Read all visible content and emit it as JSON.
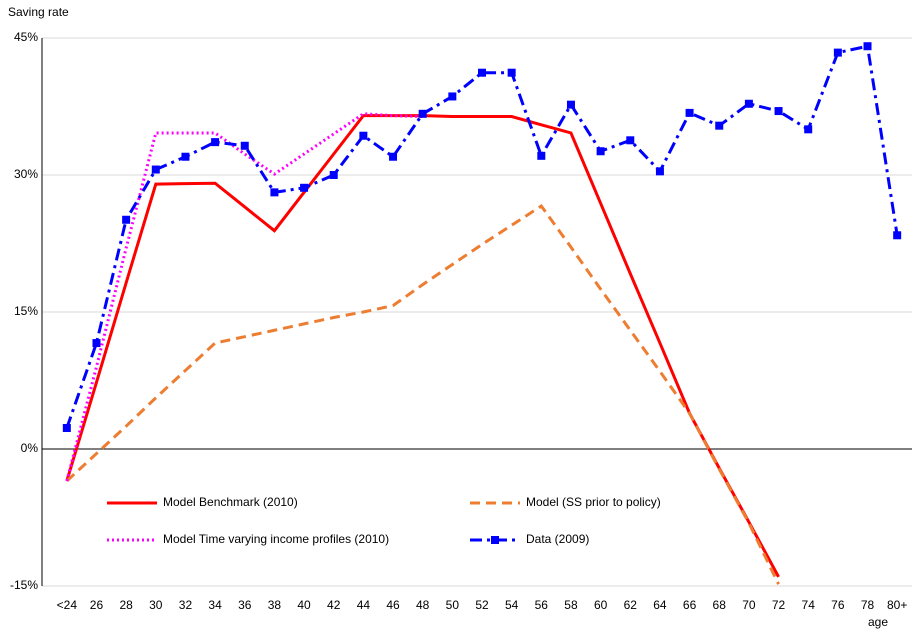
{
  "chart_data": {
    "type": "line",
    "y_label": "Saving rate",
    "x_label": "age",
    "categories": [
      "<24",
      "26",
      "28",
      "30",
      "32",
      "34",
      "36",
      "38",
      "40",
      "42",
      "44",
      "46",
      "48",
      "50",
      "52",
      "54",
      "56",
      "58",
      "60",
      "62",
      "64",
      "66",
      "68",
      "70",
      "72",
      "74",
      "76",
      "78",
      "80+"
    ],
    "ylim": [
      -15,
      45
    ],
    "yticks": [
      {
        "value": -15,
        "label": "-15%"
      },
      {
        "value": 0,
        "label": "0%"
      },
      {
        "value": 15,
        "label": "15%"
      },
      {
        "value": 30,
        "label": "30%"
      },
      {
        "value": 45,
        "label": "45%"
      }
    ],
    "grid": true,
    "series": [
      {
        "name": "Model Benchmark  (2010)",
        "color": "#ff0000",
        "dash": "solid",
        "marker": false,
        "values": [
          -3.5,
          7.3,
          18.2,
          29.0,
          29.05,
          29.1,
          26.5,
          23.9,
          28.1,
          32.3,
          36.5,
          36.5,
          36.5,
          36.4,
          36.4,
          36.4,
          35.5,
          34.6,
          26.9,
          19.2,
          11.6,
          3.9,
          -2.1,
          -8.0,
          -14.0,
          null,
          null,
          null,
          null
        ]
      },
      {
        "name": "Model (SS prior to policy)",
        "color": "#ed7d31",
        "dash": "dash",
        "marker": false,
        "values": [
          -3.5,
          -0.5,
          2.5,
          5.6,
          8.6,
          11.6,
          12.3,
          13.0,
          13.7,
          14.4,
          15.0,
          15.7,
          18.0,
          20.2,
          22.4,
          24.5,
          26.6,
          22.1,
          17.5,
          13.0,
          8.5,
          3.9,
          -2.2,
          -8.1,
          -14.8,
          null,
          null,
          null,
          null
        ]
      },
      {
        "name": "Model Time varying income profiles (2010)",
        "color": "#ff00ff",
        "dash": "dot",
        "marker": false,
        "values": [
          -3.5,
          9.0,
          22.0,
          34.6,
          34.6,
          34.6,
          32.3,
          30.1,
          32.3,
          34.5,
          36.7,
          36.5,
          36.4,
          null,
          null,
          null,
          null,
          null,
          null,
          null,
          null,
          null,
          null,
          null,
          null,
          null,
          null,
          null,
          null
        ]
      },
      {
        "name": "Data (2009)",
        "color": "#0000ff",
        "dash": "dashdot",
        "marker": true,
        "values": [
          2.3,
          11.6,
          25.1,
          30.6,
          32.0,
          33.6,
          33.2,
          28.1,
          28.6,
          30.0,
          34.3,
          32.0,
          36.7,
          38.6,
          41.2,
          41.2,
          32.1,
          37.7,
          32.6,
          33.8,
          30.4,
          36.8,
          35.4,
          37.8,
          37.0,
          35.0,
          43.4,
          44.1,
          23.4
        ]
      }
    ]
  }
}
